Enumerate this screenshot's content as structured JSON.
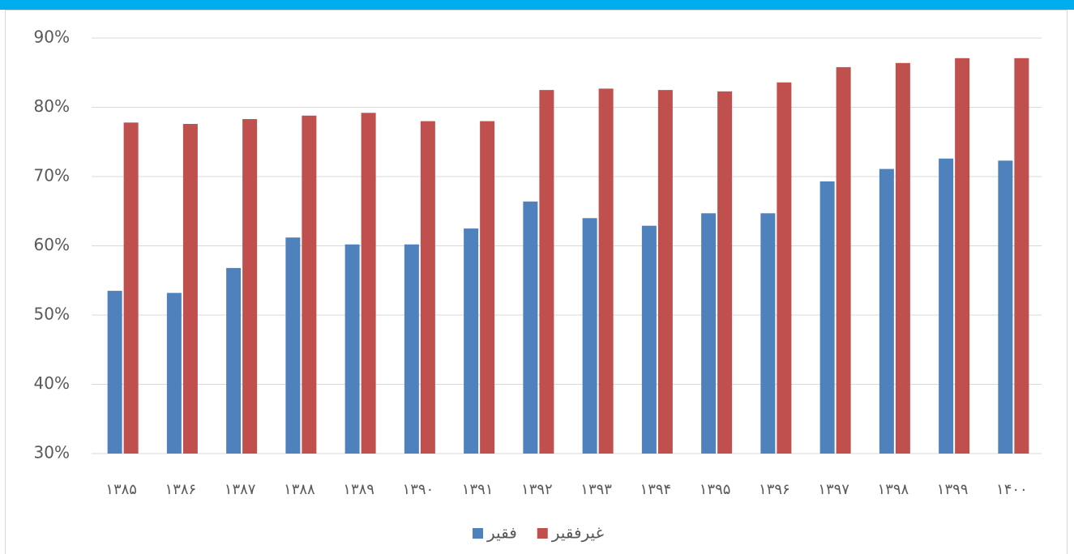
{
  "chart_data": {
    "type": "bar",
    "categories": [
      "۱۳۸۵",
      "۱۳۸۶",
      "۱۳۸۷",
      "۱۳۸۸",
      "۱۳۸۹",
      "۱۳۹۰",
      "۱۳۹۱",
      "۱۳۹۲",
      "۱۳۹۳",
      "۱۳۹۴",
      "۱۳۹۵",
      "۱۳۹۶",
      "۱۳۹۷",
      "۱۳۹۸",
      "۱۳۹۹",
      "۱۴۰۰"
    ],
    "series": [
      {
        "name": "فقیر",
        "color": "#4f81bd",
        "values": [
          53.5,
          53.2,
          56.8,
          61.2,
          60.2,
          60.2,
          62.5,
          66.4,
          64.0,
          62.9,
          64.7,
          64.7,
          69.3,
          71.1,
          72.6,
          72.3
        ]
      },
      {
        "name": "غیرفقیر",
        "color": "#c0504d",
        "values": [
          77.8,
          77.6,
          78.3,
          78.8,
          79.2,
          78.0,
          78.0,
          82.5,
          82.7,
          82.5,
          82.3,
          83.6,
          85.8,
          86.4,
          87.1,
          87.1
        ]
      }
    ],
    "ylim": [
      30,
      90
    ],
    "yticks": [
      {
        "value": 30,
        "label": "30%"
      },
      {
        "value": 40,
        "label": "40%"
      },
      {
        "value": 50,
        "label": "50%"
      },
      {
        "value": 60,
        "label": "60%"
      },
      {
        "value": 70,
        "label": "70%"
      },
      {
        "value": 80,
        "label": "80%"
      },
      {
        "value": 90,
        "label": "90%"
      }
    ],
    "grid": true,
    "legend": "bottom"
  }
}
